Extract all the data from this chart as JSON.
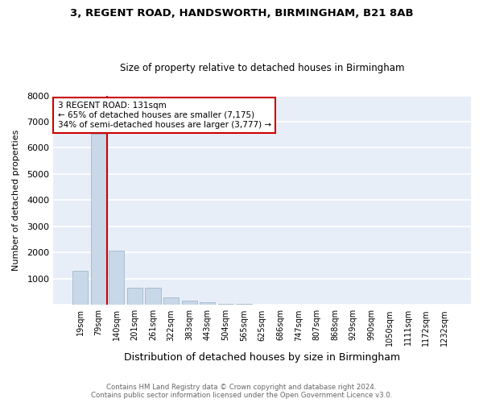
{
  "title": "3, REGENT ROAD, HANDSWORTH, BIRMINGHAM, B21 8AB",
  "subtitle": "Size of property relative to detached houses in Birmingham",
  "xlabel": "Distribution of detached houses by size in Birmingham",
  "ylabel": "Number of detached properties",
  "bar_labels": [
    "19sqm",
    "79sqm",
    "140sqm",
    "201sqm",
    "261sqm",
    "322sqm",
    "383sqm",
    "443sqm",
    "504sqm",
    "565sqm",
    "625sqm",
    "686sqm",
    "747sqm",
    "807sqm",
    "868sqm",
    "929sqm",
    "990sqm",
    "1050sqm",
    "1111sqm",
    "1172sqm",
    "1232sqm"
  ],
  "bar_values": [
    1300,
    6550,
    2070,
    670,
    660,
    290,
    150,
    90,
    50,
    50,
    0,
    0,
    0,
    0,
    0,
    0,
    0,
    0,
    0,
    0,
    0
  ],
  "bar_color": "#c8d8e8",
  "bar_edge_color": "#a0b8cc",
  "property_line_x": 1.5,
  "annotation_text": "3 REGENT ROAD: 131sqm\n← 65% of detached houses are smaller (7,175)\n34% of semi-detached houses are larger (3,777) →",
  "annotation_box_color": "white",
  "annotation_box_edge": "#cc0000",
  "vline_color": "#cc0000",
  "ylim": [
    0,
    8000
  ],
  "yticks": [
    0,
    1000,
    2000,
    3000,
    4000,
    5000,
    6000,
    7000,
    8000
  ],
  "footer_line1": "Contains HM Land Registry data © Crown copyright and database right 2024.",
  "footer_line2": "Contains public sector information licensed under the Open Government Licence v3.0.",
  "fig_bg_color": "#ffffff",
  "plot_bg_color": "#e8eef8",
  "grid_color": "#ffffff",
  "footer_color": "#666666"
}
